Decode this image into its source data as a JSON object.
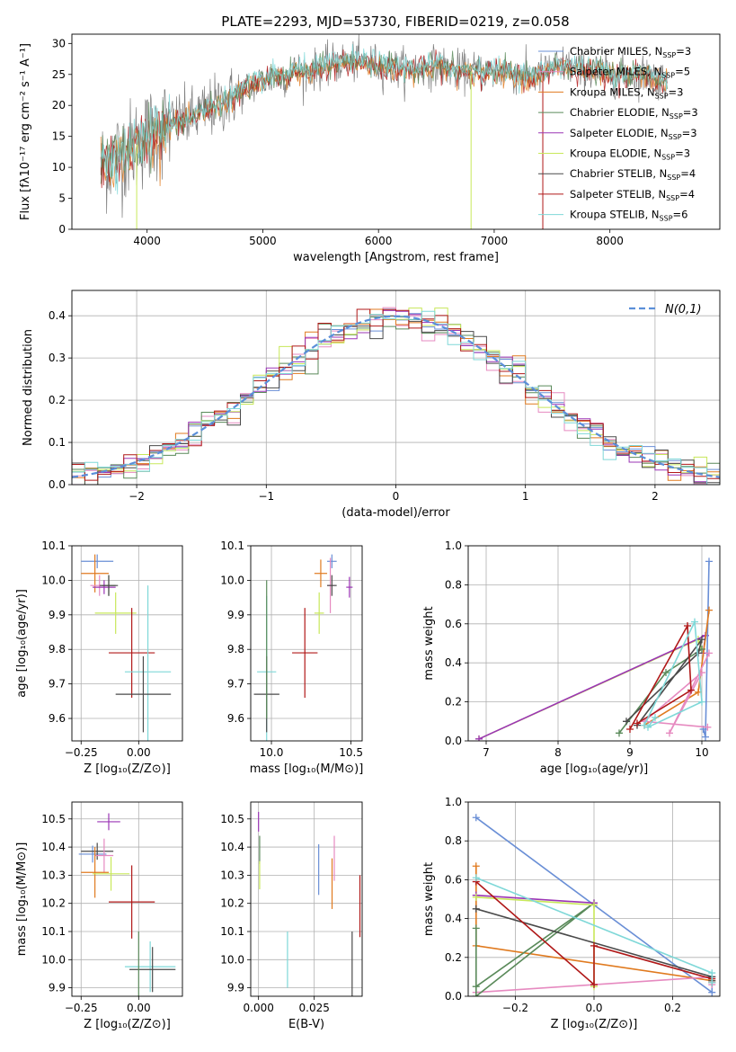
{
  "figure_title": "PLATE=2293, MJD=53730, FIBERID=0219, z=0.058",
  "palette": {
    "chabrier_miles": "#6a8fd6",
    "salpeter_miles": "#e68ac0",
    "kroupa_miles": "#e07a1f",
    "chabrier_elodie": "#5a8a5a",
    "salpeter_elodie": "#9b35b5",
    "kroupa_elodie": "#c8e85a",
    "chabrier_stelib": "#4a4a4a",
    "salpeter_stelib": "#b01818",
    "kroupa_stelib": "#7fd8d8",
    "gaussian": "#5b8fd9",
    "spectrum": "#808080",
    "grid": "#b0b0b0"
  },
  "chart_data": [
    {
      "id": "spectrum",
      "type": "line",
      "title": "PLATE=2293, MJD=53730, FIBERID=0219, z=0.058",
      "xlabel": "wavelength [Angstrom, rest frame]",
      "ylabel": "Flux [fλ10⁻¹⁷ erg cm⁻² s⁻¹ A⁻¹]",
      "xlim": [
        3350,
        8950
      ],
      "ylim": [
        0,
        31.5
      ],
      "xticks": [
        4000,
        5000,
        6000,
        7000,
        8000
      ],
      "yticks": [
        0,
        5,
        10,
        15,
        20,
        25,
        30
      ],
      "grid": false,
      "legend_position": "top-right",
      "legend": [
        {
          "label": "Chabrier MILES, N",
          "sub": "SSP",
          "suffix": "=3",
          "color_key": "chabrier_miles"
        },
        {
          "label": "Salpeter MILES, N",
          "sub": "SSP",
          "suffix": "=5",
          "color_key": "salpeter_miles"
        },
        {
          "label": "Kroupa MILES, N",
          "sub": "SSP",
          "suffix": "=3",
          "color_key": "kroupa_miles"
        },
        {
          "label": "Chabrier ELODIE, N",
          "sub": "SSP",
          "suffix": "=3",
          "color_key": "chabrier_elodie"
        },
        {
          "label": "Salpeter ELODIE, N",
          "sub": "SSP",
          "suffix": "=3",
          "color_key": "salpeter_elodie"
        },
        {
          "label": "Kroupa ELODIE, N",
          "sub": "SSP",
          "suffix": "=3",
          "color_key": "kroupa_elodie"
        },
        {
          "label": "Chabrier STELIB, N",
          "sub": "SSP",
          "suffix": "=4",
          "color_key": "chabrier_stelib"
        },
        {
          "label": "Salpeter STELIB, N",
          "sub": "SSP",
          "suffix": "=4",
          "color_key": "salpeter_stelib"
        },
        {
          "label": "Kroupa STELIB, N",
          "sub": "SSP",
          "suffix": "=6",
          "color_key": "kroupa_stelib"
        }
      ],
      "continuum": {
        "x": [
          3600,
          3700,
          3800,
          3900,
          4000,
          4100,
          4200,
          4300,
          4400,
          4500,
          4600,
          4700,
          4800,
          4900,
          5000,
          5100,
          5200,
          5300,
          5400,
          5500,
          5600,
          5700,
          5800,
          5900,
          6000,
          6100,
          6200,
          6300,
          6400,
          6500,
          6600,
          6700,
          6800,
          6900,
          7000,
          7100,
          7200,
          7300,
          7400,
          7500,
          7600,
          7700,
          7800,
          7900,
          8000,
          8100,
          8200,
          8300,
          8400,
          8500
        ],
        "y": [
          10,
          11.5,
          12.5,
          13.5,
          15,
          16,
          17,
          17.5,
          18,
          19,
          20,
          21,
          22,
          23,
          24,
          24.5,
          24.8,
          25.5,
          25.5,
          26,
          26.5,
          27,
          27,
          27,
          26.5,
          26,
          26,
          26,
          26,
          26.5,
          26,
          25.5,
          25.5,
          25.5,
          25.5,
          25.5,
          25,
          24.5,
          25,
          26,
          26.5,
          26,
          25.5,
          25.5,
          25,
          25,
          25,
          25,
          24.5,
          24
        ]
      },
      "spikes": [
        {
          "x": 3910,
          "y": 0
        },
        {
          "x": 6800,
          "y": 0
        },
        {
          "x": 7420,
          "y": 0
        }
      ]
    },
    {
      "id": "residuals",
      "type": "step",
      "xlabel": "(data-model)/error",
      "ylabel": "Normed distribution",
      "xlim": [
        -2.5,
        2.5
      ],
      "ylim": [
        0,
        0.46
      ],
      "xticks": [
        -2,
        -1,
        0,
        1,
        2
      ],
      "xticklabels": [
        "−2",
        "−1",
        "0",
        "1",
        "2"
      ],
      "yticks": [
        0,
        0.1,
        0.2,
        0.3,
        0.4
      ],
      "yticklabels": [
        "0.0",
        "0.1",
        "0.2",
        "0.3",
        "0.4"
      ],
      "grid": true,
      "legend_position": "top-right",
      "legend_label": "N(0,1)",
      "bin_width": 0.1,
      "series_keys": [
        "chabrier_miles",
        "salpeter_miles",
        "kroupa_miles",
        "chabrier_elodie",
        "salpeter_elodie",
        "kroupa_elodie",
        "chabrier_stelib",
        "salpeter_stelib",
        "kroupa_stelib"
      ]
    },
    {
      "id": "age_vs_Z",
      "type": "errorbar",
      "xlabel": "Z [log₁₀(Z/Z⊙)]",
      "ylabel": "age  [log₁₀(age/yr)]",
      "xlim": [
        -0.29,
        0.19
      ],
      "ylim": [
        9.535,
        10.1
      ],
      "xticks": [
        -0.25,
        0.0
      ],
      "xticklabels": [
        "−0.25",
        "0.00"
      ],
      "yticks": [
        9.6,
        9.7,
        9.8,
        9.9,
        10.0,
        10.1
      ],
      "grid": true,
      "points": [
        {
          "key": "chabrier_miles",
          "x": -0.18,
          "y": 10.055,
          "xerr": 0.07,
          "yerr": 0.02
        },
        {
          "key": "kroupa_miles",
          "x": -0.19,
          "y": 10.02,
          "xerr": 0.06,
          "yerr": 0.055
        },
        {
          "key": "salpeter_miles",
          "x": -0.17,
          "y": 9.985,
          "xerr": 0.04,
          "yerr": 0.03
        },
        {
          "key": "chabrier_elodie",
          "x": -0.13,
          "y": 9.985,
          "xerr": 0.03,
          "yerr": 0.03
        },
        {
          "key": "salpeter_elodie",
          "x": -0.15,
          "y": 9.98,
          "xerr": 0.05,
          "yerr": 0.02
        },
        {
          "key": "chabrier_stelib",
          "x": -0.13,
          "y": 9.985,
          "xerr": 0.04,
          "yerr": 0.03
        },
        {
          "key": "kroupa_elodie",
          "x": -0.1,
          "y": 9.905,
          "xerr": 0.09,
          "yerr": 0.06
        },
        {
          "key": "salpeter_stelib",
          "x": -0.03,
          "y": 9.79,
          "xerr": 0.1,
          "yerr": 0.13
        },
        {
          "key": "kroupa_stelib",
          "x": 0.04,
          "y": 9.735,
          "xerr": 0.1,
          "yerr": 0.25
        },
        {
          "key": "chabrier_stelib",
          "x": 0.02,
          "y": 9.67,
          "xerr": 0.12,
          "yerr": 0.11
        }
      ]
    },
    {
      "id": "age_vs_mass",
      "type": "errorbar",
      "xlabel": "mass [log₁₀(M/M⊙)]",
      "ylabel": "",
      "xlim": [
        9.87,
        10.57
      ],
      "ylim": [
        9.535,
        10.1
      ],
      "xticks": [
        10.0,
        10.5
      ],
      "xticklabels": [
        "10.0",
        "10.5"
      ],
      "yticks": [
        9.6,
        9.7,
        9.8,
        9.9,
        10.0,
        10.1
      ],
      "grid": true,
      "points": [
        {
          "key": "chabrier_miles",
          "x": 10.38,
          "y": 10.055,
          "xerr": 0.03,
          "yerr": 0.02
        },
        {
          "key": "kroupa_miles",
          "x": 10.31,
          "y": 10.02,
          "xerr": 0.04,
          "yerr": 0.04
        },
        {
          "key": "salpeter_miles",
          "x": 10.37,
          "y": 9.985,
          "xerr": 0.02,
          "yerr": 0.08
        },
        {
          "key": "salpeter_elodie",
          "x": 10.49,
          "y": 9.98,
          "xerr": 0.02,
          "yerr": 0.03
        },
        {
          "key": "chabrier_stelib",
          "x": 10.38,
          "y": 9.985,
          "xerr": 0.03,
          "yerr": 0.03
        },
        {
          "key": "kroupa_elodie",
          "x": 10.3,
          "y": 9.905,
          "xerr": 0.03,
          "yerr": 0.06
        },
        {
          "key": "salpeter_stelib",
          "x": 10.21,
          "y": 9.79,
          "xerr": 0.08,
          "yerr": 0.13
        },
        {
          "key": "kroupa_stelib",
          "x": 9.97,
          "y": 9.735,
          "xerr": 0.06,
          "yerr": 0.22
        },
        {
          "key": "chabrier_stelib",
          "x": 9.97,
          "y": 9.67,
          "xerr": 0.08,
          "yerr": 0.11
        },
        {
          "key": "chabrier_elodie",
          "x": 9.97,
          "y": 9.8,
          "xerr": 0.0,
          "yerr": 0.2
        }
      ]
    },
    {
      "id": "weight_vs_age",
      "type": "line",
      "xlabel": "age  [log₁₀(age/yr)]",
      "ylabel": "mass weight",
      "xlim": [
        6.75,
        10.25
      ],
      "ylim": [
        0,
        1.0
      ],
      "xticks": [
        7,
        8,
        9,
        10
      ],
      "yticks": [
        0,
        0.2,
        0.4,
        0.6,
        0.8,
        1.0
      ],
      "yticklabels": [
        "0.0",
        "0.2",
        "0.4",
        "0.6",
        "0.8",
        "1.0"
      ],
      "grid": true,
      "series": [
        {
          "key": "kroupa_elodie",
          "x": [
            6.9,
            9.95,
            10.0
          ],
          "y": [
            0.01,
            0.52,
            0.47
          ]
        },
        {
          "key": "salpeter_elodie",
          "x": [
            6.9,
            10.05,
            10.02
          ],
          "y": [
            0.01,
            0.54,
            0.45
          ]
        },
        {
          "key": "chabrier_miles",
          "x": [
            10.1,
            10.05,
            10.02
          ],
          "y": [
            0.92,
            0.02,
            0.06
          ]
        },
        {
          "key": "kroupa_miles",
          "x": [
            10.1,
            9.95,
            9.2
          ],
          "y": [
            0.67,
            0.25,
            0.08
          ]
        },
        {
          "key": "salpeter_miles",
          "x": [
            10.1,
            9.55,
            10.0,
            9.2,
            10.08
          ],
          "y": [
            0.45,
            0.04,
            0.35,
            0.1,
            0.07
          ]
        },
        {
          "key": "chabrier_elodie",
          "x": [
            8.85,
            9.5,
            10.0
          ],
          "y": [
            0.04,
            0.35,
            0.47
          ]
        },
        {
          "key": "chabrier_stelib",
          "x": [
            8.95,
            9.95,
            10.0,
            9.1
          ],
          "y": [
            0.1,
            0.45,
            0.52,
            0.08
          ]
        },
        {
          "key": "salpeter_stelib",
          "x": [
            9.0,
            9.8,
            9.85,
            9.1
          ],
          "y": [
            0.06,
            0.59,
            0.26,
            0.09
          ]
        },
        {
          "key": "kroupa_stelib",
          "x": [
            9.2,
            9.9,
            10.0,
            9.25,
            9.35
          ],
          "y": [
            0.08,
            0.61,
            0.2,
            0.07,
            0.12
          ]
        }
      ]
    },
    {
      "id": "mass_vs_Z",
      "type": "errorbar",
      "xlabel": "Z [log₁₀(Z/Z⊙)]",
      "ylabel": "mass [log₁₀(M/M⊙)]",
      "xlim": [
        -0.29,
        0.19
      ],
      "ylim": [
        9.87,
        10.56
      ],
      "xticks": [
        -0.25,
        0.0
      ],
      "xticklabels": [
        "−0.25",
        "0.00"
      ],
      "yticks": [
        9.9,
        10.0,
        10.1,
        10.2,
        10.3,
        10.4,
        10.5
      ],
      "grid": true,
      "points": [
        {
          "key": "salpeter_elodie",
          "x": -0.13,
          "y": 10.49,
          "xerr": 0.05,
          "yerr": 0.03
        },
        {
          "key": "chabrier_miles",
          "x": -0.2,
          "y": 10.375,
          "xerr": 0.06,
          "yerr": 0.03
        },
        {
          "key": "chabrier_stelib",
          "x": -0.18,
          "y": 10.385,
          "xerr": 0.07,
          "yerr": 0.03
        },
        {
          "key": "salpeter_miles",
          "x": -0.15,
          "y": 10.37,
          "xerr": 0.04,
          "yerr": 0.06
        },
        {
          "key": "kroupa_miles",
          "x": -0.19,
          "y": 10.31,
          "xerr": 0.06,
          "yerr": 0.09
        },
        {
          "key": "kroupa_elodie",
          "x": -0.12,
          "y": 10.305,
          "xerr": 0.08,
          "yerr": 0.06
        },
        {
          "key": "salpeter_stelib",
          "x": -0.03,
          "y": 10.205,
          "xerr": 0.1,
          "yerr": 0.13
        },
        {
          "key": "kroupa_stelib",
          "x": 0.05,
          "y": 9.975,
          "xerr": 0.11,
          "yerr": 0.09
        },
        {
          "key": "chabrier_stelib",
          "x": 0.06,
          "y": 9.965,
          "xerr": 0.1,
          "yerr": 0.08
        },
        {
          "key": "chabrier_elodie",
          "x": 0.0,
          "y": 9.98,
          "xerr": 0.0,
          "yerr": 0.12
        }
      ]
    },
    {
      "id": "mass_vs_ebv",
      "type": "errorbar",
      "xlabel": "E(B-V)",
      "ylabel": "",
      "xlim": [
        -0.0035,
        0.0465
      ],
      "ylim": [
        9.87,
        10.56
      ],
      "xticks": [
        0.0,
        0.025
      ],
      "xticklabels": [
        "0.000",
        "0.025"
      ],
      "yticks": [
        9.9,
        10.0,
        10.1,
        10.2,
        10.3,
        10.4,
        10.5
      ],
      "grid": true,
      "points": [
        {
          "key": "salpeter_elodie",
          "x": 0.0,
          "y": 10.49,
          "xerr": 0,
          "yerr": 0.035
        },
        {
          "key": "chabrier_elodie",
          "x": 0.0005,
          "y": 10.39,
          "xerr": 0,
          "yerr": 0.05
        },
        {
          "key": "kroupa_elodie",
          "x": 0.0005,
          "y": 10.3,
          "xerr": 0,
          "yerr": 0.05
        },
        {
          "key": "chabrier_miles",
          "x": 0.027,
          "y": 10.32,
          "xerr": 0,
          "yerr": 0.09
        },
        {
          "key": "salpeter_miles",
          "x": 0.034,
          "y": 10.36,
          "xerr": 0,
          "yerr": 0.08
        },
        {
          "key": "kroupa_miles",
          "x": 0.033,
          "y": 10.27,
          "xerr": 0,
          "yerr": 0.09
        },
        {
          "key": "salpeter_stelib",
          "x": 0.0455,
          "y": 10.19,
          "xerr": 0,
          "yerr": 0.11
        },
        {
          "key": "kroupa_stelib",
          "x": 0.013,
          "y": 10.0,
          "xerr": 0,
          "yerr": 0.1
        },
        {
          "key": "chabrier_stelib",
          "x": 0.042,
          "y": 9.98,
          "xerr": 0,
          "yerr": 0.12
        }
      ]
    },
    {
      "id": "weight_vs_Z",
      "type": "line",
      "xlabel": "Z [log₁₀(Z/Z⊙)]",
      "ylabel": "mass weight",
      "xlim": [
        -0.32,
        0.32
      ],
      "ylim": [
        0,
        1.0
      ],
      "xticks": [
        -0.2,
        0.0,
        0.2
      ],
      "xticklabels": [
        "−0.2",
        "0.0",
        "0.2"
      ],
      "yticks": [
        0,
        0.2,
        0.4,
        0.6,
        0.8,
        1.0
      ],
      "yticklabels": [
        "0.0",
        "0.2",
        "0.4",
        "0.6",
        "0.8",
        "1.0"
      ],
      "grid": true,
      "series": [
        {
          "key": "chabrier_miles",
          "x": [
            -0.3,
            0.3,
            0.3
          ],
          "y": [
            0.92,
            0.02,
            0.1
          ]
        },
        {
          "key": "kroupa_miles",
          "x": [
            -0.3,
            -0.3,
            0.3
          ],
          "y": [
            0.67,
            0.26,
            0.08
          ]
        },
        {
          "key": "salpeter_miles",
          "x": [
            -0.3,
            0.3,
            0.3
          ],
          "y": [
            0.02,
            0.1,
            0.06
          ]
        },
        {
          "key": "chabrier_elodie",
          "x": [
            -0.3,
            -0.3,
            0.0,
            -0.3
          ],
          "y": [
            0.35,
            0.0,
            0.48,
            0.05
          ]
        },
        {
          "key": "salpeter_elodie",
          "x": [
            -0.3,
            0.0,
            0.0
          ],
          "y": [
            0.52,
            0.48,
            0.47
          ]
        },
        {
          "key": "kroupa_elodie",
          "x": [
            -0.3,
            0.0,
            0.0
          ],
          "y": [
            0.51,
            0.47,
            0.05
          ]
        },
        {
          "key": "chabrier_stelib",
          "x": [
            -0.3,
            0.3,
            0.3
          ],
          "y": [
            0.45,
            0.1,
            0.08
          ]
        },
        {
          "key": "salpeter_stelib",
          "x": [
            -0.3,
            0.0,
            0.0,
            0.3,
            0.3
          ],
          "y": [
            0.59,
            0.06,
            0.26,
            0.09,
            0.07
          ]
        },
        {
          "key": "kroupa_stelib",
          "x": [
            -0.3,
            0.3,
            0.3
          ],
          "y": [
            0.61,
            0.12,
            0.07
          ]
        }
      ]
    }
  ]
}
